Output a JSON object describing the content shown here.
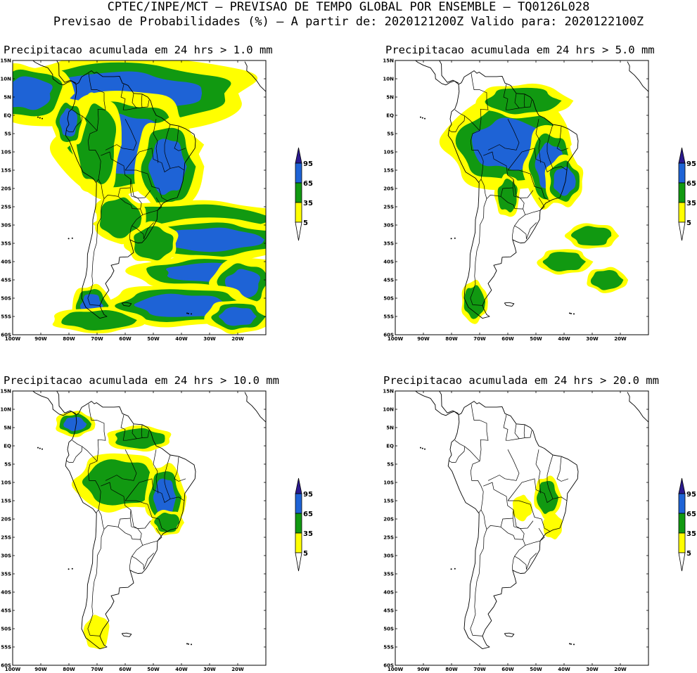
{
  "header": {
    "line1": "CPTEC/INPE/MCT – PREVISAO DE TEMPO GLOBAL POR ENSEMBLE – TQ0126L028",
    "line2": "Previsao de Probabilidades (%) –   A partir de: 2020121200Z  Valido para: 2020122100Z"
  },
  "panels": [
    {
      "title": "Precipitacao acumulada em 24 hrs > 1.0 mm",
      "threshold_mm": 1.0
    },
    {
      "title": "Precipitacao acumulada em 24 hrs > 5.0 mm",
      "threshold_mm": 5.0
    },
    {
      "title": "Precipitacao acumulada em 24 hrs > 10.0 mm",
      "threshold_mm": 10.0
    },
    {
      "title": "Precipitacao acumulada em 24 hrs > 20.0 mm",
      "threshold_mm": 20.0
    }
  ],
  "lat_labels": [
    "15N",
    "10N",
    "5N",
    "EQ",
    "5S",
    "10S",
    "15S",
    "20S",
    "25S",
    "30S",
    "35S",
    "40S",
    "45S",
    "50S",
    "55S",
    "60S"
  ],
  "lon_labels": [
    "100W",
    "90W",
    "80W",
    "70W",
    "60W",
    "50W",
    "40W",
    "30W",
    "20W"
  ],
  "colorbar": {
    "levels": [
      "5",
      "35",
      "65",
      "95"
    ],
    "colors": [
      "#ffff00",
      "#119911",
      "#1e63d6",
      "#2b1a8f"
    ]
  },
  "map_extent": {
    "lon": [
      -100,
      -10
    ],
    "lat": [
      -60,
      15
    ]
  }
}
